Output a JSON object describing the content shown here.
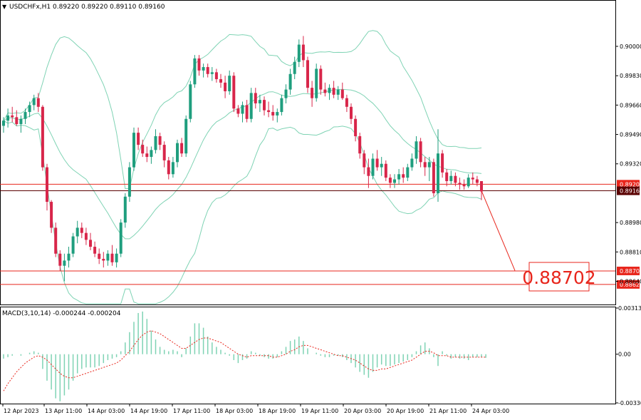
{
  "header": {
    "symbol_line": "USDCHFx,H1  0.89220 0.89220 0.89110 0.89160",
    "indicator_line": "MACD(3,10,14) -0.000244 -0.000204"
  },
  "target_callout": "0.88702",
  "chart_data": [
    {
      "type": "candlestick",
      "instrument": "USDCHFx",
      "timeframe": "H1",
      "ohlc_last": {
        "open": 0.8922,
        "high": 0.8922,
        "low": 0.8911,
        "close": 0.8916
      },
      "y_ticks": [
        "0.90000",
        "0.89830",
        "0.89660",
        "0.89490",
        "0.89320",
        "0.88980",
        "0.88810",
        "0.88640"
      ],
      "ylim": [
        0.8851,
        0.9026
      ],
      "x_ticks": [
        "12 Apr 2023",
        "13 Apr 11:00",
        "14 Apr 03:00",
        "14 Apr 19:00",
        "17 Apr 11:00",
        "18 Apr 03:00",
        "18 Apr 19:00",
        "19 Apr 11:00",
        "20 Apr 03:00",
        "20 Apr 19:00",
        "21 Apr 11:00",
        "24 Apr 03:00"
      ],
      "levels": [
        {
          "value": 0.89202,
          "label": "0.89202",
          "color": "#e8261c"
        },
        {
          "value": 0.89164,
          "label": "0.89164",
          "color": "#5a0000"
        },
        {
          "value": 0.887,
          "label": "0.88700",
          "color": "#e8261c"
        },
        {
          "value": 0.88622,
          "label": "0.88622",
          "color": "#e8261c"
        }
      ],
      "target": {
        "value": 0.88702,
        "from": 0.89164
      },
      "bollinger_color": "#7fd3b4",
      "bull_color": "#1f9e7e",
      "bear_color": "#d8264a",
      "candles": [
        [
          0.8954,
          0.8959,
          0.895,
          0.8957
        ],
        [
          0.8957,
          0.8964,
          0.8953,
          0.896
        ],
        [
          0.896,
          0.8965,
          0.8956,
          0.8959
        ],
        [
          0.8959,
          0.8963,
          0.8954,
          0.8955
        ],
        [
          0.8955,
          0.896,
          0.895,
          0.8958
        ],
        [
          0.8958,
          0.8964,
          0.8955,
          0.8962
        ],
        [
          0.8962,
          0.8968,
          0.8959,
          0.8966
        ],
        [
          0.8966,
          0.8972,
          0.8963,
          0.897
        ],
        [
          0.897,
          0.8973,
          0.8962,
          0.8965
        ],
        [
          0.8965,
          0.8966,
          0.8928,
          0.893
        ],
        [
          0.893,
          0.8932,
          0.8905,
          0.891
        ],
        [
          0.891,
          0.8911,
          0.8892,
          0.8895
        ],
        [
          0.8895,
          0.8898,
          0.8878,
          0.888
        ],
        [
          0.888,
          0.8882,
          0.887,
          0.8873
        ],
        [
          0.8873,
          0.888,
          0.8864,
          0.8876
        ],
        [
          0.8876,
          0.8884,
          0.8872,
          0.888
        ],
        [
          0.888,
          0.8892,
          0.8878,
          0.889
        ],
        [
          0.889,
          0.8899,
          0.8886,
          0.8895
        ],
        [
          0.8895,
          0.8898,
          0.8889,
          0.8892
        ],
        [
          0.8892,
          0.8895,
          0.8885,
          0.8888
        ],
        [
          0.8888,
          0.8892,
          0.8882,
          0.8884
        ],
        [
          0.8884,
          0.8887,
          0.8878,
          0.888
        ],
        [
          0.888,
          0.8883,
          0.8874,
          0.8877
        ],
        [
          0.8877,
          0.8881,
          0.8872,
          0.8876
        ],
        [
          0.8876,
          0.8882,
          0.8873,
          0.888
        ],
        [
          0.888,
          0.8885,
          0.8873,
          0.8875
        ],
        [
          0.8875,
          0.8883,
          0.8872,
          0.888
        ],
        [
          0.888,
          0.89,
          0.8878,
          0.8898
        ],
        [
          0.8898,
          0.8915,
          0.8895,
          0.8913
        ],
        [
          0.8913,
          0.8933,
          0.891,
          0.893
        ],
        [
          0.893,
          0.8953,
          0.8928,
          0.895
        ],
        [
          0.895,
          0.8953,
          0.894,
          0.8943
        ],
        [
          0.8943,
          0.8946,
          0.8936,
          0.8938
        ],
        [
          0.8938,
          0.8942,
          0.8933,
          0.8936
        ],
        [
          0.8936,
          0.8942,
          0.8932,
          0.894
        ],
        [
          0.894,
          0.8952,
          0.8938,
          0.8948
        ],
        [
          0.8948,
          0.895,
          0.894,
          0.8943
        ],
        [
          0.8943,
          0.8945,
          0.893,
          0.8934
        ],
        [
          0.8934,
          0.8936,
          0.8923,
          0.8926
        ],
        [
          0.8926,
          0.8936,
          0.8924,
          0.8933
        ],
        [
          0.8933,
          0.8946,
          0.893,
          0.8944
        ],
        [
          0.8944,
          0.8947,
          0.8936,
          0.8938
        ],
        [
          0.8938,
          0.896,
          0.8936,
          0.8958
        ],
        [
          0.8958,
          0.898,
          0.8956,
          0.8978
        ],
        [
          0.8978,
          0.8995,
          0.8976,
          0.8993
        ],
        [
          0.8993,
          0.8995,
          0.8983,
          0.8986
        ],
        [
          0.8986,
          0.899,
          0.8982,
          0.8988
        ],
        [
          0.8988,
          0.899,
          0.8982,
          0.8984
        ],
        [
          0.8984,
          0.8988,
          0.898,
          0.8985
        ],
        [
          0.8985,
          0.8987,
          0.8979,
          0.8981
        ],
        [
          0.8981,
          0.8984,
          0.8976,
          0.8979
        ],
        [
          0.8979,
          0.8983,
          0.897,
          0.8974
        ],
        [
          0.8974,
          0.8986,
          0.8972,
          0.8983
        ],
        [
          0.8983,
          0.8985,
          0.8962,
          0.8964
        ],
        [
          0.8964,
          0.8966,
          0.8959,
          0.8961
        ],
        [
          0.8961,
          0.8968,
          0.8956,
          0.8966
        ],
        [
          0.8966,
          0.8969,
          0.8956,
          0.8958
        ],
        [
          0.8958,
          0.8976,
          0.8956,
          0.8973
        ],
        [
          0.8973,
          0.8976,
          0.8964,
          0.8967
        ],
        [
          0.8967,
          0.8972,
          0.8962,
          0.8969
        ],
        [
          0.8969,
          0.8971,
          0.896,
          0.8963
        ],
        [
          0.8963,
          0.8968,
          0.8959,
          0.8962
        ],
        [
          0.8962,
          0.8966,
          0.8957,
          0.896
        ],
        [
          0.896,
          0.8964,
          0.8956,
          0.8962
        ],
        [
          0.8962,
          0.8972,
          0.896,
          0.897
        ],
        [
          0.897,
          0.8978,
          0.8967,
          0.8975
        ],
        [
          0.8975,
          0.8987,
          0.8972,
          0.8984
        ],
        [
          0.8984,
          0.8994,
          0.8981,
          0.8991
        ],
        [
          0.8991,
          0.9004,
          0.8988,
          0.9001
        ],
        [
          0.9001,
          0.9006,
          0.8988,
          0.8992
        ],
        [
          0.8992,
          0.8994,
          0.8973,
          0.8976
        ],
        [
          0.8976,
          0.898,
          0.8965,
          0.897
        ],
        [
          0.897,
          0.899,
          0.8968,
          0.8987
        ],
        [
          0.8987,
          0.8989,
          0.8972,
          0.8975
        ],
        [
          0.8975,
          0.8979,
          0.8971,
          0.8973
        ],
        [
          0.8973,
          0.8978,
          0.8969,
          0.8976
        ],
        [
          0.8976,
          0.898,
          0.897,
          0.8972
        ],
        [
          0.8972,
          0.8977,
          0.8969,
          0.8975
        ],
        [
          0.8975,
          0.8979,
          0.8969,
          0.897
        ],
        [
          0.897,
          0.8972,
          0.8962,
          0.8965
        ],
        [
          0.8965,
          0.8967,
          0.8955,
          0.8958
        ],
        [
          0.8958,
          0.896,
          0.8945,
          0.8948
        ],
        [
          0.8948,
          0.895,
          0.8935,
          0.8938
        ],
        [
          0.8938,
          0.894,
          0.8926,
          0.893
        ],
        [
          0.893,
          0.8935,
          0.8918,
          0.8925
        ],
        [
          0.8925,
          0.8938,
          0.8923,
          0.8935
        ],
        [
          0.8935,
          0.894,
          0.8928,
          0.893
        ],
        [
          0.893,
          0.8936,
          0.8925,
          0.8932
        ],
        [
          0.8932,
          0.8934,
          0.8922,
          0.8924
        ],
        [
          0.8924,
          0.8926,
          0.8918,
          0.8921
        ],
        [
          0.8921,
          0.8926,
          0.8918,
          0.8923
        ],
        [
          0.8923,
          0.8929,
          0.892,
          0.8926
        ],
        [
          0.8926,
          0.893,
          0.8921,
          0.8924
        ],
        [
          0.8924,
          0.8932,
          0.8922,
          0.893
        ],
        [
          0.893,
          0.8938,
          0.8928,
          0.8935
        ],
        [
          0.8935,
          0.8948,
          0.8932,
          0.8945
        ],
        [
          0.8945,
          0.8947,
          0.893,
          0.8933
        ],
        [
          0.8933,
          0.8936,
          0.8925,
          0.893
        ],
        [
          0.893,
          0.8936,
          0.8922,
          0.8933
        ],
        [
          0.8933,
          0.8935,
          0.8913,
          0.8915
        ],
        [
          0.8915,
          0.8952,
          0.891,
          0.8938
        ],
        [
          0.8938,
          0.894,
          0.8924,
          0.8927
        ],
        [
          0.8927,
          0.8929,
          0.8919,
          0.8922
        ],
        [
          0.8922,
          0.8928,
          0.892,
          0.8925
        ],
        [
          0.8925,
          0.8927,
          0.8919,
          0.8921
        ],
        [
          0.8921,
          0.8924,
          0.8917,
          0.892
        ],
        [
          0.892,
          0.8923,
          0.8917,
          0.8919
        ],
        [
          0.8919,
          0.8926,
          0.8918,
          0.8924
        ],
        [
          0.8924,
          0.8927,
          0.892,
          0.8923
        ],
        [
          0.8923,
          0.8925,
          0.8919,
          0.8921
        ],
        [
          0.8922,
          0.8922,
          0.8911,
          0.8916
        ]
      ]
    },
    {
      "type": "histogram",
      "indicator": "MACD(3,10,14)",
      "main": -0.000244,
      "signal": -0.000204,
      "y_ticks": [
        "0.003138",
        "0.00",
        "-0.003309"
      ],
      "ylim": [
        -0.003309,
        0.003138
      ],
      "hist_color": "#7fd3b4",
      "signal_color": "#e8261c",
      "histogram": [
        -0.0003,
        -0.0002,
        -0.0001,
        0.0,
        -0.0001,
        0.0,
        0.0001,
        0.0002,
        0.0001,
        -0.001,
        -0.0018,
        -0.0024,
        -0.003,
        -0.0032,
        -0.0028,
        -0.0024,
        -0.0018,
        -0.0013,
        -0.001,
        -0.0009,
        -0.0009,
        -0.0009,
        -0.0008,
        -0.0006,
        -0.0004,
        -0.0003,
        -0.0002,
        0.0002,
        0.0008,
        0.0015,
        0.0022,
        0.0028,
        0.0029,
        0.0024,
        0.0016,
        0.001,
        0.0005,
        0.0003,
        0.0002,
        0.0003,
        0.0002,
        -0.0002,
        0.0004,
        0.0012,
        0.0021,
        0.0021,
        0.0018,
        0.0012,
        0.0008,
        0.0005,
        0.0003,
        0.0001,
        -0.0001,
        -0.0004,
        -0.0006,
        -0.0004,
        -0.0003,
        0.0002,
        0.0001,
        -0.0001,
        -0.0002,
        -0.0003,
        -0.0003,
        -0.0002,
        0.0002,
        0.0005,
        0.0009,
        0.001,
        0.0012,
        0.0009,
        0.0004,
        0.0,
        0.0001,
        -0.0001,
        -0.0002,
        -0.0002,
        -0.0001,
        -0.0001,
        -0.0002,
        -0.0004,
        -0.0006,
        -0.0009,
        -0.0012,
        -0.0014,
        -0.0016,
        -0.0012,
        -0.0009,
        -0.0007,
        -0.0008,
        -0.0008,
        -0.0007,
        -0.0006,
        -0.0005,
        -0.0004,
        -0.0002,
        0.0002,
        0.0006,
        0.0008,
        0.0004,
        -0.0002,
        -0.0008,
        0.0002,
        -0.0001,
        -0.0003,
        -0.0002,
        -0.0003,
        -0.0003,
        -0.0004,
        -0.0002,
        -0.0002,
        -0.0002,
        -0.000244
      ],
      "signal_line": [
        -0.0025,
        -0.002,
        -0.0016,
        -0.0012,
        -0.0009,
        -0.0006,
        -0.0004,
        -0.0002,
        -0.0001,
        -0.0002,
        -0.0004,
        -0.0007,
        -0.001,
        -0.0013,
        -0.0015,
        -0.0016,
        -0.0016,
        -0.0015,
        -0.0014,
        -0.0013,
        -0.0012,
        -0.0011,
        -0.001,
        -0.0009,
        -0.0008,
        -0.0007,
        -0.0006,
        -0.0004,
        -0.0001,
        0.0002,
        0.0006,
        0.001,
        0.0013,
        0.0015,
        0.0016,
        0.0015,
        0.0014,
        0.0012,
        0.001,
        0.0008,
        0.0006,
        0.0004,
        0.0004,
        0.0006,
        0.0008,
        0.001,
        0.0011,
        0.0011,
        0.001,
        0.0009,
        0.0008,
        0.0006,
        0.0004,
        0.0002,
        0.0,
        -0.0001,
        -0.0002,
        -0.0001,
        -0.0001,
        -0.0001,
        -0.0001,
        -0.0001,
        -0.0002,
        -0.0002,
        -0.0001,
        0.0,
        0.0002,
        0.0003,
        0.0005,
        0.0006,
        0.0006,
        0.0005,
        0.0004,
        0.0003,
        0.0002,
        0.0001,
        0.0,
        -0.0001,
        -0.0001,
        -0.0002,
        -0.0003,
        -0.0004,
        -0.0006,
        -0.0008,
        -0.001,
        -0.0011,
        -0.0011,
        -0.001,
        -0.001,
        -0.0009,
        -0.0008,
        -0.0007,
        -0.0006,
        -0.0005,
        -0.0004,
        -0.0002,
        0.0,
        0.0002,
        0.0002,
        0.0001,
        -0.0001,
        -0.0001,
        -0.0001,
        -0.0002,
        -0.0002,
        -0.0002,
        -0.0002,
        -0.0002,
        -0.0002,
        -0.0002,
        -0.0002,
        -0.000204
      ]
    }
  ]
}
